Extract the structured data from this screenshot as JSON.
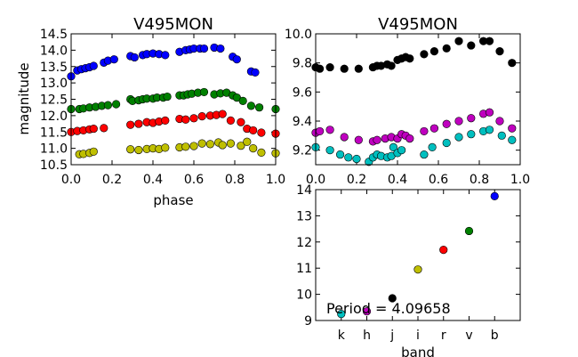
{
  "chart_data": [
    {
      "type": "scatter",
      "title": "V495MON",
      "xlabel": "phase",
      "ylabel": "magnitude",
      "xlim": [
        0.0,
        1.0
      ],
      "ylim": [
        14.5,
        10.5
      ],
      "xticks": [
        "0.0",
        "0.2",
        "0.4",
        "0.6",
        "0.8",
        "1.0"
      ],
      "yticks": [
        "10.5",
        "11.0",
        "11.5",
        "12.0",
        "12.5",
        "13.0",
        "13.5",
        "14.0",
        "14.5"
      ],
      "grid": false,
      "series": [
        {
          "color": "#bfbf00",
          "x": [
            0.04,
            0.06,
            0.09,
            0.11,
            0.29,
            0.33,
            0.37,
            0.4,
            0.43,
            0.46,
            0.53,
            0.56,
            0.6,
            0.64,
            0.68,
            0.72,
            0.74,
            0.78,
            0.83,
            0.86,
            0.89,
            0.93,
            1.0
          ],
          "y": [
            10.82,
            10.83,
            10.86,
            10.9,
            10.97,
            10.95,
            10.98,
            11.0,
            10.98,
            11.02,
            11.03,
            11.05,
            11.07,
            11.15,
            11.13,
            11.18,
            11.1,
            11.15,
            11.08,
            11.2,
            11.0,
            10.87,
            10.85
          ]
        },
        {
          "color": "#ff0000",
          "x": [
            0.0,
            0.03,
            0.06,
            0.09,
            0.11,
            0.16,
            0.29,
            0.33,
            0.37,
            0.4,
            0.43,
            0.46,
            0.53,
            0.56,
            0.6,
            0.64,
            0.68,
            0.71,
            0.74,
            0.78,
            0.83,
            0.86,
            0.89,
            0.93,
            1.0
          ],
          "y": [
            11.5,
            11.53,
            11.55,
            11.58,
            11.6,
            11.62,
            11.72,
            11.75,
            11.8,
            11.78,
            11.82,
            11.85,
            11.9,
            11.88,
            11.92,
            11.98,
            12.0,
            12.02,
            12.05,
            11.85,
            11.8,
            11.6,
            11.55,
            11.48,
            11.45
          ]
        },
        {
          "color": "#008000",
          "x": [
            0.0,
            0.04,
            0.06,
            0.09,
            0.12,
            0.15,
            0.18,
            0.22,
            0.29,
            0.3,
            0.33,
            0.35,
            0.37,
            0.4,
            0.42,
            0.45,
            0.47,
            0.53,
            0.55,
            0.57,
            0.59,
            0.62,
            0.65,
            0.7,
            0.73,
            0.76,
            0.79,
            0.81,
            0.84,
            0.88,
            0.92,
            1.0
          ],
          "y": [
            12.2,
            12.2,
            12.22,
            12.25,
            12.27,
            12.3,
            12.32,
            12.35,
            12.5,
            12.45,
            12.47,
            12.5,
            12.52,
            12.52,
            12.55,
            12.55,
            12.58,
            12.62,
            12.62,
            12.65,
            12.67,
            12.7,
            12.72,
            12.65,
            12.68,
            12.7,
            12.62,
            12.55,
            12.45,
            12.3,
            12.25,
            12.2
          ]
        },
        {
          "color": "#0000ff",
          "x": [
            0.0,
            0.03,
            0.05,
            0.07,
            0.09,
            0.11,
            0.16,
            0.18,
            0.21,
            0.29,
            0.31,
            0.35,
            0.37,
            0.4,
            0.43,
            0.46,
            0.53,
            0.56,
            0.58,
            0.6,
            0.63,
            0.65,
            0.7,
            0.73,
            0.79,
            0.81,
            0.88,
            0.9
          ],
          "y": [
            13.2,
            13.38,
            13.42,
            13.45,
            13.48,
            13.52,
            13.62,
            13.68,
            13.72,
            13.82,
            13.78,
            13.85,
            13.88,
            13.9,
            13.88,
            13.85,
            13.95,
            14.0,
            14.02,
            14.05,
            14.05,
            14.05,
            14.08,
            14.05,
            13.8,
            13.72,
            13.35,
            13.32
          ]
        }
      ]
    },
    {
      "type": "scatter",
      "title": "V495MON",
      "xlim": [
        0.0,
        1.0
      ],
      "ylim": [
        10.0,
        9.1
      ],
      "xticks": [
        "0.0",
        "0.2",
        "0.4",
        "0.6",
        "0.8",
        "1.0"
      ],
      "yticks": [
        "9.2",
        "9.4",
        "9.6",
        "9.8",
        "10.0"
      ],
      "grid": false,
      "series": [
        {
          "color": "#00bfbf",
          "x": [
            0.0,
            0.07,
            0.12,
            0.16,
            0.2,
            0.26,
            0.28,
            0.3,
            0.32,
            0.35,
            0.37,
            0.38,
            0.4,
            0.42,
            0.53,
            0.57,
            0.64,
            0.7,
            0.76,
            0.82,
            0.85,
            0.91,
            0.96
          ],
          "y": [
            9.22,
            9.2,
            9.17,
            9.15,
            9.14,
            9.12,
            9.15,
            9.17,
            9.16,
            9.15,
            9.16,
            9.22,
            9.18,
            9.2,
            9.17,
            9.22,
            9.25,
            9.29,
            9.31,
            9.33,
            9.34,
            9.3,
            9.27
          ]
        },
        {
          "color": "#bf00bf",
          "x": [
            0.0,
            0.02,
            0.07,
            0.14,
            0.21,
            0.28,
            0.3,
            0.34,
            0.37,
            0.4,
            0.42,
            0.44,
            0.46,
            0.53,
            0.58,
            0.64,
            0.7,
            0.76,
            0.82,
            0.85,
            0.9,
            0.96
          ],
          "y": [
            9.32,
            9.33,
            9.34,
            9.29,
            9.27,
            9.26,
            9.27,
            9.28,
            9.29,
            9.28,
            9.31,
            9.3,
            9.28,
            9.33,
            9.35,
            9.38,
            9.4,
            9.42,
            9.45,
            9.46,
            9.4,
            9.35
          ]
        },
        {
          "color": "#000000",
          "x": [
            0.0,
            0.02,
            0.07,
            0.14,
            0.21,
            0.28,
            0.3,
            0.32,
            0.35,
            0.37,
            0.4,
            0.42,
            0.44,
            0.46,
            0.53,
            0.58,
            0.64,
            0.7,
            0.76,
            0.82,
            0.85,
            0.9,
            0.96
          ],
          "y": [
            9.77,
            9.76,
            9.77,
            9.76,
            9.76,
            9.77,
            9.78,
            9.78,
            9.79,
            9.78,
            9.82,
            9.83,
            9.84,
            9.83,
            9.86,
            9.88,
            9.9,
            9.95,
            9.92,
            9.95,
            9.95,
            9.88,
            9.8
          ]
        }
      ]
    },
    {
      "type": "scatter",
      "xlabel": "band",
      "ylim": [
        14,
        9
      ],
      "categories": [
        "k",
        "h",
        "j",
        "i",
        "r",
        "v",
        "b"
      ],
      "yticks": [
        "9",
        "10",
        "11",
        "12",
        "13",
        "14"
      ],
      "annotation": "Period = 4.09658",
      "grid": false,
      "points": [
        {
          "band": "k",
          "value": 9.25,
          "color": "#00bfbf"
        },
        {
          "band": "h",
          "value": 9.35,
          "color": "#bf00bf"
        },
        {
          "band": "j",
          "value": 9.85,
          "color": "#000000"
        },
        {
          "band": "i",
          "value": 10.95,
          "color": "#bfbf00"
        },
        {
          "band": "r",
          "value": 11.7,
          "color": "#ff0000"
        },
        {
          "band": "v",
          "value": 12.42,
          "color": "#008000"
        },
        {
          "band": "b",
          "value": 13.75,
          "color": "#0000ff"
        }
      ]
    }
  ]
}
